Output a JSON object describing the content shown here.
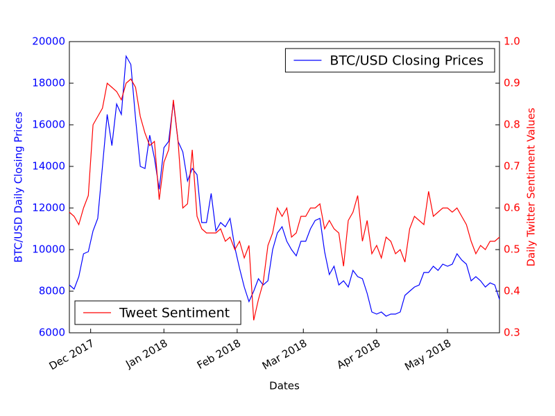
{
  "chart_data": {
    "type": "line",
    "xlabel": "Dates",
    "ylabel": "BTC/USD Daily Closing Prices",
    "y2label": "Daily Twitter Sentiment Values",
    "xlim": [
      0,
      91
    ],
    "xticks": [
      {
        "value": 4.5,
        "label": "Dec 2017"
      },
      {
        "value": 20,
        "label": "Jan 2018"
      },
      {
        "value": 35.5,
        "label": "Feb 2018"
      },
      {
        "value": 49.5,
        "label": "Mar 2018"
      },
      {
        "value": 65,
        "label": "Apr 2018"
      },
      {
        "value": 80,
        "label": "May 2018"
      }
    ],
    "ylim": [
      6000,
      20000
    ],
    "yticks": [
      6000,
      8000,
      10000,
      12000,
      14000,
      16000,
      18000,
      20000
    ],
    "y2lim": [
      0.3,
      1.0
    ],
    "y2ticks": [
      0.3,
      0.4,
      0.5,
      0.6,
      0.7,
      0.8,
      0.9,
      {
        "value": 1,
        "label": "1.0"
      }
    ],
    "series": [
      {
        "name": "BTC/USD Closing Prices",
        "color": "#0000ff",
        "legend": "upper right",
        "values": [
          8300,
          8100,
          8700,
          9800,
          9900,
          10900,
          11500,
          14000,
          16500,
          15000,
          17000,
          16500,
          19300,
          18900,
          16300,
          14000,
          13900,
          15500,
          14400,
          12900,
          14900,
          15200,
          17100,
          15200,
          14700,
          13300,
          13900,
          13600,
          11300,
          11300,
          12700,
          10900,
          11300,
          11100,
          11500,
          10100,
          9100,
          8200,
          7500,
          8000,
          8600,
          8300,
          8500,
          10000,
          10800,
          11100,
          10400,
          10000,
          9700,
          10400,
          10400,
          11000,
          11400,
          11500,
          9900,
          8800,
          9200,
          8300,
          8500,
          8200,
          9000,
          8700,
          8600,
          7900,
          7000,
          6900,
          7000,
          6800,
          6900,
          6900,
          7000,
          7800,
          8000,
          8200,
          8300,
          8900,
          8900,
          9200,
          9000,
          9300,
          9200,
          9300,
          9800,
          9500,
          9300,
          8500,
          8700,
          8500,
          8200,
          8400,
          8300,
          7600
        ]
      },
      {
        "name": "Tweet Sentiment",
        "color": "#ff0000",
        "axis": "y2",
        "legend": "lower left",
        "values": [
          0.59,
          0.58,
          0.56,
          0.6,
          0.63,
          0.8,
          0.82,
          0.84,
          0.9,
          0.89,
          0.88,
          0.86,
          0.9,
          0.91,
          0.89,
          0.82,
          0.78,
          0.75,
          0.76,
          0.62,
          0.71,
          0.74,
          0.86,
          0.76,
          0.6,
          0.61,
          0.74,
          0.58,
          0.55,
          0.54,
          0.54,
          0.54,
          0.55,
          0.52,
          0.53,
          0.5,
          0.52,
          0.48,
          0.51,
          0.33,
          0.38,
          0.42,
          0.51,
          0.54,
          0.6,
          0.58,
          0.6,
          0.53,
          0.54,
          0.58,
          0.58,
          0.6,
          0.6,
          0.61,
          0.55,
          0.57,
          0.55,
          0.54,
          0.46,
          0.57,
          0.59,
          0.63,
          0.52,
          0.57,
          0.49,
          0.51,
          0.48,
          0.53,
          0.52,
          0.49,
          0.5,
          0.47,
          0.55,
          0.58,
          0.57,
          0.56,
          0.64,
          0.58,
          0.59,
          0.6,
          0.6,
          0.59,
          0.6,
          0.58,
          0.56,
          0.52,
          0.49,
          0.51,
          0.5,
          0.52,
          0.52,
          0.53
        ]
      }
    ]
  }
}
